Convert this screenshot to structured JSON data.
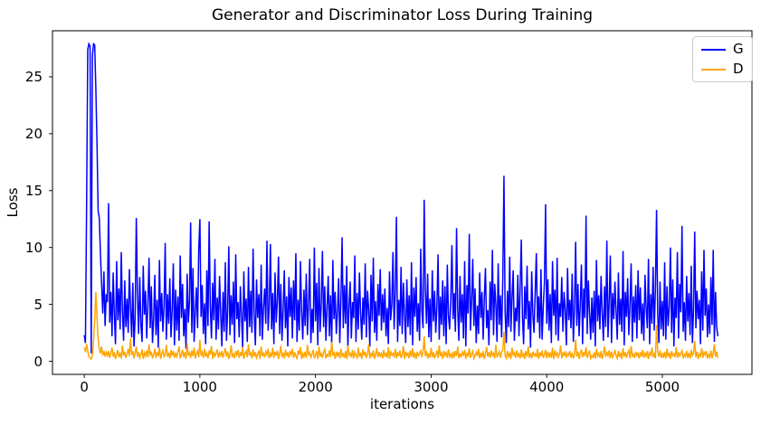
{
  "figure": {
    "title": "Generator and Discriminator Loss During Training",
    "xlabel": "iterations",
    "ylabel": "Loss",
    "background_color": "#ffffff",
    "axes_edge_color": "#000000",
    "text_color": "#000000"
  },
  "legend": {
    "position": "upper right",
    "entries": [
      {
        "label": "G",
        "color": "#0000ff"
      },
      {
        "label": "D",
        "color": "#ffa500"
      }
    ]
  },
  "chart_data": {
    "type": "line",
    "title": "Generator and Discriminator Loss During Training",
    "xlabel": "iterations",
    "ylabel": "Loss",
    "xlim": [
      -275,
      5775
    ],
    "ylim": [
      -1.15,
      29.05
    ],
    "xticks": [
      0,
      1000,
      2000,
      3000,
      4000,
      5000
    ],
    "yticks": [
      0,
      5,
      10,
      15,
      20,
      25
    ],
    "grid": false,
    "legend_position": "upper right",
    "x_start": 0,
    "x_step": 10,
    "series": [
      {
        "name": "G",
        "color": "#0000ff",
        "values": [
          2.3,
          1.6,
          13.5,
          27.4,
          27.9,
          27.7,
          0.7,
          26.8,
          27.9,
          27.8,
          24.0,
          19.2,
          13.2,
          12.6,
          9.4,
          6.8,
          4.2,
          7.9,
          3.1,
          5.9,
          5.2,
          13.9,
          3.4,
          6.1,
          2.2,
          7.8,
          4.0,
          1.5,
          8.8,
          3.6,
          6.4,
          2.8,
          9.6,
          4.4,
          1.8,
          7.1,
          3.0,
          5.5,
          2.5,
          8.1,
          4.7,
          2.1,
          6.9,
          1.3,
          3.9,
          12.6,
          5.8,
          2.4,
          7.4,
          3.2,
          1.7,
          8.4,
          4.1,
          6.2,
          2.0,
          5.0,
          9.1,
          2.9,
          6.6,
          1.6,
          3.7,
          7.6,
          2.3,
          5.4,
          1.2,
          8.9,
          3.5,
          6.0,
          2.6,
          4.9,
          10.4,
          1.9,
          5.9,
          3.3,
          7.3,
          2.1,
          4.5,
          8.6,
          1.4,
          6.3,
          2.7,
          5.7,
          1.8,
          9.3,
          3.8,
          6.8,
          2.2,
          4.6,
          1.1,
          7.7,
          3.4,
          5.3,
          12.2,
          2.5,
          8.2,
          1.7,
          4.3,
          6.5,
          2.9,
          9.8,
          12.5,
          3.9,
          6.7,
          2.4,
          5.1,
          1.5,
          8.0,
          3.1,
          12.3,
          4.8,
          2.0,
          6.9,
          3.6,
          9.0,
          1.9,
          5.6,
          2.8,
          7.5,
          4.2,
          1.3,
          6.1,
          2.6,
          8.7,
          1.8,
          4.4,
          10.1,
          2.3,
          5.8,
          3.2,
          7.0,
          1.6,
          9.4,
          3.7,
          5.2,
          2.1,
          6.6,
          4.0,
          1.2,
          7.9,
          3.5,
          5.5,
          1.7,
          8.3,
          3.0,
          6.2,
          2.5,
          9.9,
          4.1,
          1.4,
          7.2,
          3.8,
          5.9,
          2.2,
          8.5,
          1.9,
          4.7,
          6.4,
          3.3,
          10.6,
          2.7,
          4.9,
          10.3,
          2.8,
          6.0,
          1.5,
          7.8,
          3.4,
          5.3,
          9.2,
          2.4,
          6.8,
          1.8,
          4.5,
          8.0,
          2.9,
          5.7,
          1.3,
          7.4,
          3.9,
          6.5,
          2.0,
          7.1,
          3.6,
          9.5,
          1.7,
          5.4,
          2.7,
          8.8,
          4.3,
          1.9,
          6.3,
          3.1,
          7.7,
          2.3,
          5.0,
          9.0,
          1.6,
          4.6,
          2.5,
          10.0,
          3.5,
          6.9,
          1.4,
          8.2,
          2.6,
          5.1,
          9.7,
          3.0,
          6.6,
          1.8,
          4.8,
          7.5,
          2.2,
          5.8,
          1.5,
          8.9,
          3.7,
          6.1,
          2.4,
          4.4,
          7.3,
          1.6,
          5.5,
          10.9,
          2.9,
          6.7,
          3.3,
          8.4,
          1.2,
          4.9,
          7.0,
          2.0,
          5.2,
          3.8,
          9.3,
          1.7,
          6.0,
          2.8,
          7.8,
          4.2,
          1.9,
          5.6,
          3.2,
          8.6,
          2.1,
          6.2,
          4.5,
          1.3,
          7.6,
          3.5,
          9.1,
          2.5,
          5.3,
          1.8,
          6.8,
          4.0,
          8.1,
          2.7,
          5.9,
          3.4,
          6.4,
          2.2,
          4.7,
          1.5,
          7.9,
          3.6,
          5.0,
          9.6,
          2.8,
          6.1,
          12.7,
          1.7,
          5.4,
          3.1,
          8.3,
          2.4,
          6.9,
          4.1,
          1.6,
          7.2,
          3.0,
          5.8,
          2.3,
          8.7,
          1.4,
          6.5,
          3.9,
          7.4,
          2.6,
          5.1,
          1.8,
          9.9,
          4.4,
          2.9,
          14.2,
          6.3,
          3.3,
          7.7,
          2.1,
          5.5,
          1.7,
          8.0,
          3.5,
          6.2,
          2.5,
          4.8,
          9.4,
          1.9,
          5.7,
          3.2,
          7.1,
          2.2,
          6.6,
          1.5,
          8.5,
          4.0,
          2.8,
          5.4,
          10.2,
          3.7,
          6.0,
          2.6,
          11.7,
          4.6,
          1.8,
          7.5,
          3.4,
          5.9,
          2.0,
          8.8,
          1.3,
          6.7,
          4.2,
          11.2,
          2.7,
          5.2,
          9.0,
          3.1,
          6.4,
          1.6,
          4.9,
          2.4,
          7.8,
          3.8,
          6.1,
          1.9,
          5.5,
          8.2,
          2.9,
          4.5,
          1.4,
          7.0,
          3.6,
          9.8,
          2.3,
          6.8,
          5.0,
          1.7,
          8.6,
          3.2,
          5.8,
          2.1,
          7.3,
          16.3,
          4.3,
          1.6,
          6.2,
          3.0,
          9.2,
          2.6,
          5.6,
          8.0,
          1.8,
          4.7,
          3.5,
          7.6,
          2.2,
          6.5,
          10.7,
          3.9,
          1.5,
          6.6,
          3.7,
          8.4,
          2.8,
          5.3,
          1.2,
          7.9,
          4.1,
          2.5,
          6.0,
          9.5,
          3.4,
          5.7,
          2.0,
          8.1,
          1.9,
          4.8,
          6.9,
          13.8,
          3.3,
          7.2,
          2.7,
          5.9,
          1.6,
          8.8,
          4.0,
          6.3,
          2.3,
          9.1,
          1.8,
          5.1,
          3.9,
          7.4,
          2.6,
          6.1,
          4.5,
          1.4,
          8.2,
          3.6,
          5.4,
          2.9,
          7.7,
          1.7,
          4.6,
          10.5,
          3.1,
          6.8,
          2.2,
          5.0,
          8.5,
          1.5,
          6.4,
          3.8,
          12.8,
          2.4,
          7.1,
          4.3,
          1.9,
          5.6,
          2.5,
          6.2,
          1.3,
          8.9,
          3.5,
          5.8,
          2.8,
          7.5,
          4.2,
          1.8,
          6.6,
          3.0,
          10.6,
          2.1,
          5.2,
          9.3,
          1.6,
          6.0,
          3.7,
          7.0,
          4.4,
          1.9,
          7.8,
          3.2,
          5.5,
          2.6,
          9.7,
          1.4,
          6.1,
          3.9,
          7.3,
          2.3,
          4.9,
          8.6,
          1.7,
          5.7,
          3.4,
          6.7,
          2.0,
          8.0,
          3.6,
          6.5,
          2.4,
          5.1,
          1.8,
          7.6,
          4.7,
          2.9,
          9.0,
          1.5,
          5.9,
          3.3,
          8.3,
          2.7,
          6.3,
          13.3,
          4.1,
          1.6,
          7.0,
          2.8,
          5.3,
          2.2,
          8.7,
          1.9,
          6.6,
          3.1,
          4.8,
          10.0,
          2.5,
          7.2,
          1.3,
          5.6,
          3.8,
          9.6,
          2.0,
          6.8,
          4.3,
          11.9,
          2.6,
          5.2,
          1.8,
          7.5,
          3.5,
          6.0,
          2.3,
          8.4,
          1.6,
          4.6,
          11.4,
          2.9,
          6.2,
          3.7,
          5.4,
          1.5,
          7.9,
          2.7,
          9.8,
          4.0,
          6.4,
          2.1,
          5.0,
          2.4,
          7.4,
          3.2,
          9.8,
          1.7,
          6.1,
          3.0,
          2.2
        ]
      },
      {
        "name": "D",
        "color": "#ffa500",
        "values": [
          1.2,
          0.8,
          1.5,
          0.9,
          0.4,
          0.3,
          0.2,
          0.5,
          1.8,
          3.6,
          6.1,
          3.9,
          1.9,
          1.1,
          0.7,
          1.3,
          0.5,
          0.9,
          0.4,
          0.8,
          0.5,
          0.9,
          0.3,
          0.7,
          1.2,
          0.4,
          0.8,
          0.2,
          0.6,
          1.0,
          0.35,
          0.75,
          0.25,
          1.4,
          0.5,
          0.85,
          0.3,
          0.65,
          1.1,
          0.45,
          2.0,
          0.55,
          0.9,
          0.25,
          0.7,
          1.3,
          0.4,
          0.8,
          0.3,
          0.6,
          1.05,
          0.2,
          0.75,
          0.45,
          0.95,
          0.35,
          1.5,
          0.5,
          0.85,
          0.25,
          0.6,
          1.1,
          0.3,
          0.8,
          0.45,
          1.25,
          0.2,
          0.7,
          0.95,
          0.35,
          0.65,
          1.45,
          0.4,
          0.75,
          0.25,
          1.0,
          0.5,
          0.9,
          0.3,
          0.7,
          0.4,
          0.85,
          1.3,
          0.25,
          0.6,
          1.0,
          0.35,
          0.8,
          0.2,
          1.6,
          0.5,
          0.75,
          0.3,
          0.95,
          0.45,
          1.2,
          0.25,
          0.65,
          0.9,
          0.35,
          1.9,
          0.5,
          0.8,
          0.3,
          1.1,
          0.4,
          0.7,
          0.25,
          0.95,
          0.6,
          1.35,
          0.2,
          0.85,
          0.45,
          0.65,
          1.05,
          0.3,
          0.75,
          0.5,
          0.9,
          0.3,
          0.75,
          1.15,
          0.4,
          0.85,
          0.2,
          0.6,
          1.4,
          0.35,
          0.7,
          0.25,
          0.9,
          0.55,
          1.0,
          0.3,
          0.8,
          0.45,
          1.25,
          0.2,
          0.65,
          0.9,
          0.35,
          1.5,
          0.5,
          0.75,
          0.25,
          1.05,
          0.4,
          0.8,
          0.3,
          0.6,
          0.95,
          0.2,
          1.3,
          0.45,
          0.7,
          0.35,
          0.85,
          0.55,
          1.1,
          0.25,
          0.7,
          0.4,
          1.2,
          0.3,
          0.85,
          0.5,
          0.95,
          0.2,
          0.65,
          1.35,
          0.35,
          0.75,
          0.25,
          1.0,
          0.45,
          0.8,
          0.3,
          0.9,
          0.6,
          1.1,
          0.3,
          0.8,
          0.45,
          0.25,
          0.95,
          0.6,
          1.25,
          0.2,
          0.7,
          0.4,
          0.85,
          0.3,
          1.45,
          0.5,
          0.75,
          0.35,
          0.65,
          1.0,
          0.25,
          0.55,
          0.9,
          0.2,
          1.3,
          0.4,
          0.7,
          0.3,
          0.8,
          1.05,
          0.25,
          0.6,
          0.45,
          0.95,
          0.35,
          1.7,
          0.5,
          0.75,
          0.2,
          0.85,
          0.4,
          0.8,
          0.25,
          1.1,
          0.45,
          0.65,
          0.3,
          0.9,
          0.2,
          1.4,
          0.55,
          0.7,
          0.35,
          1.0,
          0.25,
          0.8,
          0.5,
          0.3,
          1.2,
          0.4,
          0.75,
          0.2,
          1.05,
          0.5,
          0.85,
          0.3,
          0.65,
          1.5,
          0.25,
          0.75,
          0.4,
          0.95,
          0.2,
          0.6,
          1.15,
          0.35,
          0.8,
          0.45,
          0.7,
          0.25,
          1.0,
          0.4,
          0.75,
          0.3,
          1.25,
          0.2,
          0.9,
          0.55,
          0.7,
          0.35,
          1.1,
          0.25,
          0.8,
          0.45,
          0.95,
          0.3,
          0.6,
          1.35,
          0.2,
          0.85,
          0.5,
          0.7,
          0.25,
          0.95,
          0.4,
          1.15,
          0.3,
          0.75,
          0.2,
          0.85,
          0.5,
          0.65,
          1.0,
          0.35,
          0.8,
          2.2,
          0.45,
          0.9,
          0.25,
          0.7,
          0.3,
          1.2,
          0.35,
          0.8,
          0.25,
          0.6,
          0.95,
          0.3,
          1.4,
          0.45,
          0.7,
          0.2,
          0.9,
          0.5,
          0.75,
          0.3,
          1.05,
          0.4,
          0.65,
          0.25,
          0.85,
          0.3,
          0.9,
          0.45,
          1.3,
          0.25,
          0.7,
          0.35,
          0.8,
          0.55,
          1.0,
          0.2,
          0.75,
          0.4,
          1.15,
          0.3,
          0.65,
          0.9,
          0.25,
          0.5,
          0.8,
          0.45,
          1.1,
          0.25,
          0.75,
          0.35,
          0.9,
          0.2,
          0.65,
          1.25,
          0.4,
          0.8,
          0.3,
          0.95,
          0.5,
          0.7,
          0.25,
          1.45,
          0.35,
          0.6,
          0.85,
          0.3,
          0.8,
          1.0,
          2.6,
          0.5,
          0.25,
          0.9,
          0.4,
          0.7,
          0.2,
          1.2,
          0.55,
          0.75,
          0.3,
          0.95,
          0.45,
          0.65,
          0.25,
          1.05,
          0.35,
          0.75,
          0.2,
          0.9,
          0.4,
          1.3,
          0.3,
          0.7,
          0.25,
          0.85,
          0.5,
          0.65,
          0.35,
          1.1,
          0.2,
          0.8,
          0.45,
          0.95,
          0.3,
          0.6,
          1.0,
          0.25,
          0.85,
          0.4,
          0.7,
          0.3,
          1.2,
          0.2,
          0.95,
          0.5,
          0.75,
          0.35,
          0.65,
          1.4,
          0.25,
          0.8,
          0.45,
          0.9,
          0.3,
          0.7,
          0.55,
          0.9,
          0.3,
          0.75,
          0.25,
          0.6,
          1.9,
          0.4,
          0.85,
          0.2,
          0.7,
          1.05,
          0.35,
          0.8,
          0.45,
          1.25,
          0.3,
          0.65,
          0.95,
          0.25,
          0.5,
          0.35,
          0.8,
          0.25,
          1.1,
          0.45,
          0.7,
          0.3,
          0.9,
          0.2,
          0.65,
          1.3,
          0.4,
          0.75,
          0.5,
          0.95,
          0.25,
          0.85,
          0.35,
          0.6,
          1.0,
          0.5,
          0.25,
          0.9,
          0.35,
          0.75,
          0.2,
          1.15,
          0.4,
          0.8,
          0.3,
          0.7,
          0.95,
          0.25,
          1.35,
          0.45,
          0.65,
          0.3,
          0.85,
          0.5,
          0.7,
          0.25,
          0.8,
          0.4,
          1.0,
          0.3,
          0.7,
          0.45,
          0.9,
          0.2,
          0.75,
          0.55,
          1.2,
          0.35,
          0.65,
          0.25,
          3.2,
          0.8,
          0.4,
          0.95,
          0.3,
          0.7,
          0.3,
          0.85,
          0.25,
          1.1,
          0.4,
          0.75,
          0.2,
          0.9,
          0.5,
          0.65,
          0.35,
          1.25,
          0.3,
          0.8,
          0.45,
          0.7,
          0.95,
          0.25,
          0.6,
          0.4,
          0.9,
          0.3,
          0.75,
          0.25,
          1.0,
          0.5,
          0.7,
          1.8,
          0.35,
          0.85,
          0.2,
          0.65,
          0.45,
          1.15,
          0.3,
          0.8,
          0.55,
          0.9,
          0.25,
          0.6,
          0.35,
          0.95,
          0.25,
          0.75,
          1.5,
          0.4,
          0.85,
          0.3
        ]
      }
    ]
  }
}
